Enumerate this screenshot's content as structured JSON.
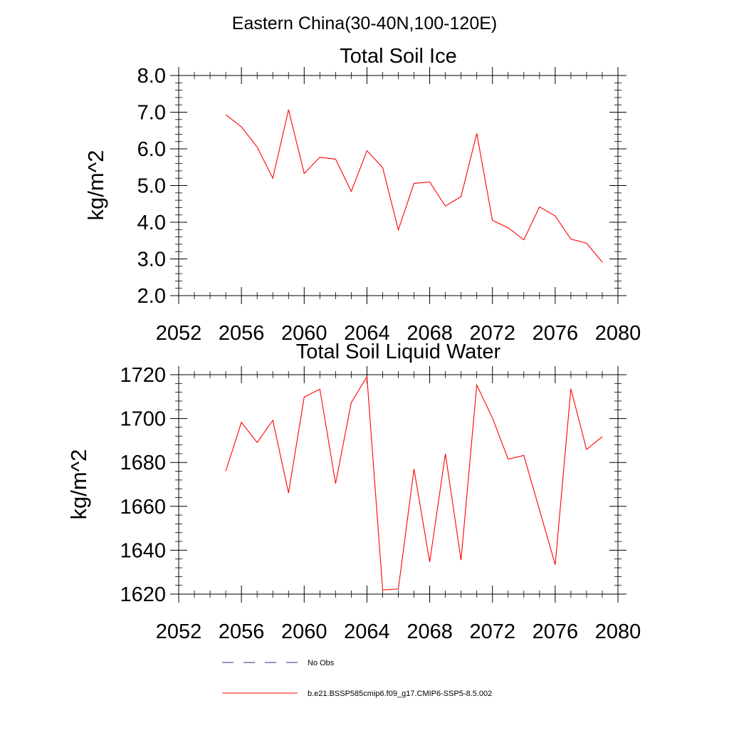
{
  "figure": {
    "title": "Eastern China(30-40N,100-120E)"
  },
  "chart_data": [
    {
      "type": "line",
      "title": "Total Soil Ice",
      "xlabel": "",
      "ylabel": "kg/m^2",
      "xlim": [
        2052,
        2080
      ],
      "ylim": [
        2.0,
        8.0
      ],
      "xticks": [
        2052,
        2056,
        2060,
        2064,
        2068,
        2072,
        2076,
        2080
      ],
      "xtick_labels": [
        "2052",
        "2056",
        "2060",
        "2064",
        "2068",
        "2072",
        "2076",
        "2080"
      ],
      "yticks": [
        2.0,
        3.0,
        4.0,
        5.0,
        6.0,
        7.0,
        8.0
      ],
      "ytick_labels": [
        "2.0",
        "3.0",
        "4.0",
        "5.0",
        "6.0",
        "7.0",
        "8.0"
      ],
      "grid": false,
      "series": [
        {
          "name": "b.e21.BSSP585cmip6.f09_g17.CMIP6-SSP5-8.5.002",
          "color": "#ff0000",
          "x": [
            2055,
            2056,
            2057,
            2058,
            2059,
            2060,
            2061,
            2062,
            2063,
            2064,
            2065,
            2066,
            2067,
            2068,
            2069,
            2070,
            2071,
            2072,
            2073,
            2074,
            2075,
            2076,
            2077,
            2078,
            2079
          ],
          "values": [
            6.93,
            6.6,
            6.05,
            5.2,
            7.07,
            5.33,
            5.77,
            5.72,
            4.84,
            5.95,
            5.49,
            3.79,
            5.06,
            5.1,
            4.44,
            4.7,
            6.42,
            4.05,
            3.85,
            3.52,
            4.42,
            4.17,
            3.54,
            3.43,
            2.91
          ]
        }
      ]
    },
    {
      "type": "line",
      "title": "Total Soil Liquid Water",
      "xlabel": "",
      "ylabel": "kg/m^2",
      "xlim": [
        2052,
        2080
      ],
      "ylim": [
        1620,
        1720
      ],
      "xticks": [
        2052,
        2056,
        2060,
        2064,
        2068,
        2072,
        2076,
        2080
      ],
      "xtick_labels": [
        "2052",
        "2056",
        "2060",
        "2064",
        "2068",
        "2072",
        "2076",
        "2080"
      ],
      "yticks": [
        1620,
        1640,
        1660,
        1680,
        1700,
        1720
      ],
      "ytick_labels": [
        "1620",
        "1640",
        "1660",
        "1680",
        "1700",
        "1720"
      ],
      "grid": false,
      "series": [
        {
          "name": "b.e21.BSSP585cmip6.f09_g17.CMIP6-SSP5-8.5.002",
          "color": "#ff0000",
          "x": [
            2055,
            2056,
            2057,
            2058,
            2059,
            2060,
            2061,
            2062,
            2063,
            2064,
            2065,
            2066,
            2067,
            2068,
            2069,
            2070,
            2071,
            2072,
            2073,
            2074,
            2075,
            2076,
            2077,
            2078,
            2079
          ],
          "values": [
            1676,
            1698.3,
            1689.1,
            1699.2,
            1666.1,
            1709.8,
            1713.4,
            1670.4,
            1707.3,
            1719.1,
            1621.9,
            1622.3,
            1677,
            1634.6,
            1684,
            1635.5,
            1715.3,
            1700.3,
            1681.5,
            1683.2,
            1658.4,
            1633.4,
            1713.6,
            1685.9,
            1691.8
          ]
        }
      ]
    }
  ],
  "legend": {
    "placement": "bottom",
    "items": [
      {
        "label": "No Obs",
        "color": "#2b2b7a",
        "style": "dashed"
      },
      {
        "label": "b.e21.BSSP585cmip6.f09_g17.CMIP6-SSP5-8.5.002",
        "color": "#ff0000",
        "style": "solid"
      }
    ]
  }
}
